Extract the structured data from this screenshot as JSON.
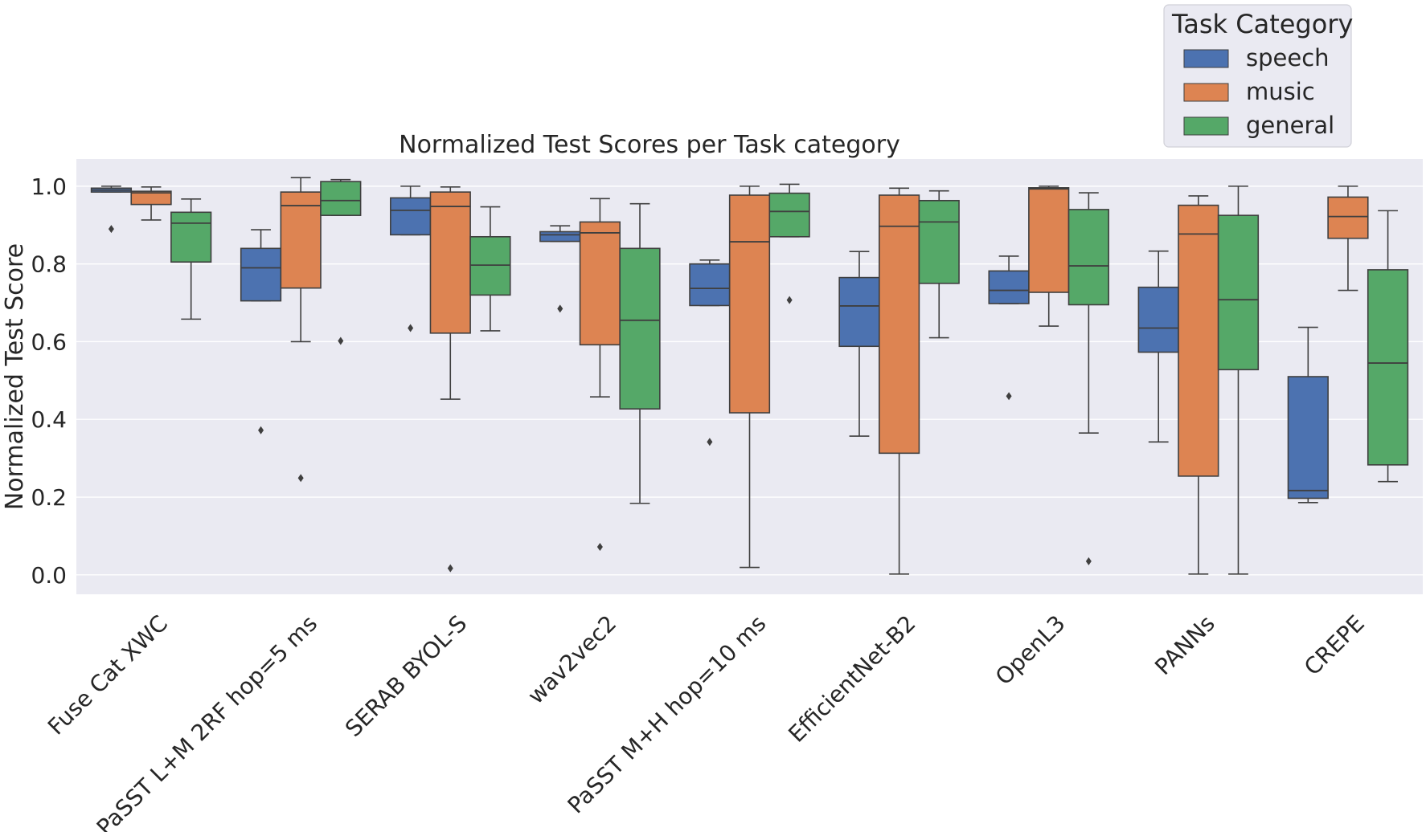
{
  "chart_data": {
    "type": "box",
    "title": "Normalized Test Scores per Task category",
    "xlabel": "",
    "ylabel": "Normalized Test Score",
    "ylim": [
      -0.05,
      1.07
    ],
    "yticks": [
      0.0,
      0.2,
      0.4,
      0.6,
      0.8,
      1.0
    ],
    "ytick_labels": [
      "0.0",
      "0.2",
      "0.4",
      "0.6",
      "0.8",
      "1.0"
    ],
    "grid": true,
    "legend": {
      "title": "Task Category",
      "placement": "top-right",
      "entries": [
        "speech",
        "music",
        "general"
      ]
    },
    "categories": [
      "Fuse Cat XWC",
      "PaSST L+M 2RF hop=5 ms",
      "SERAB BYOL-S",
      "wav2vec2",
      "PaSST M+H hop=10 ms",
      "EfficientNet-B2",
      "OpenL3",
      "PANNs",
      "CREPE"
    ],
    "series": [
      {
        "name": "speech",
        "color": "#4c72b0",
        "boxes": [
          {
            "whislo": 0.985,
            "q1": 0.985,
            "med": 0.99,
            "q3": 0.995,
            "whishi": 1.0,
            "fliers": [
              0.89
            ]
          },
          {
            "whislo": 0.705,
            "q1": 0.705,
            "med": 0.79,
            "q3": 0.84,
            "whishi": 0.888,
            "fliers": [
              0.372
            ]
          },
          {
            "whislo": 0.875,
            "q1": 0.875,
            "med": 0.938,
            "q3": 0.97,
            "whishi": 1.0,
            "fliers": [
              0.635
            ]
          },
          {
            "whislo": 0.858,
            "q1": 0.858,
            "med": 0.875,
            "q3": 0.883,
            "whishi": 0.898,
            "fliers": [
              0.685
            ]
          },
          {
            "whislo": 0.693,
            "q1": 0.693,
            "med": 0.737,
            "q3": 0.8,
            "whishi": 0.81,
            "fliers": [
              0.342
            ]
          },
          {
            "whislo": 0.357,
            "q1": 0.588,
            "med": 0.692,
            "q3": 0.765,
            "whishi": 0.832,
            "fliers": []
          },
          {
            "whislo": 0.698,
            "q1": 0.698,
            "med": 0.732,
            "q3": 0.782,
            "whishi": 0.82,
            "fliers": [
              0.46
            ]
          },
          {
            "whislo": 0.342,
            "q1": 0.573,
            "med": 0.635,
            "q3": 0.74,
            "whishi": 0.833,
            "fliers": []
          },
          {
            "whislo": 0.186,
            "q1": 0.197,
            "med": 0.217,
            "q3": 0.51,
            "whishi": 0.637,
            "fliers": []
          }
        ]
      },
      {
        "name": "music",
        "color": "#dd8452",
        "boxes": [
          {
            "whislo": 0.913,
            "q1": 0.953,
            "med": 0.983,
            "q3": 0.987,
            "whishi": 0.998,
            "fliers": []
          },
          {
            "whislo": 0.6,
            "q1": 0.738,
            "med": 0.95,
            "q3": 0.985,
            "whishi": 1.022,
            "fliers": [
              0.249
            ]
          },
          {
            "whislo": 0.452,
            "q1": 0.622,
            "med": 0.948,
            "q3": 0.985,
            "whishi": 0.998,
            "fliers": [
              0.017
            ]
          },
          {
            "whislo": 0.458,
            "q1": 0.592,
            "med": 0.88,
            "q3": 0.908,
            "whishi": 0.968,
            "fliers": [
              0.072
            ]
          },
          {
            "whislo": 0.019,
            "q1": 0.417,
            "med": 0.857,
            "q3": 0.977,
            "whishi": 1.0,
            "fliers": []
          },
          {
            "whislo": 0.002,
            "q1": 0.313,
            "med": 0.897,
            "q3": 0.977,
            "whishi": 0.995,
            "fliers": []
          },
          {
            "whislo": 0.64,
            "q1": 0.727,
            "med": 0.993,
            "q3": 0.996,
            "whishi": 1.0,
            "fliers": []
          },
          {
            "whislo": 0.002,
            "q1": 0.254,
            "med": 0.877,
            "q3": 0.951,
            "whishi": 0.975,
            "fliers": []
          },
          {
            "whislo": 0.732,
            "q1": 0.866,
            "med": 0.922,
            "q3": 0.972,
            "whishi": 1.0,
            "fliers": []
          }
        ]
      },
      {
        "name": "general",
        "color": "#55a868",
        "boxes": [
          {
            "whislo": 0.658,
            "q1": 0.805,
            "med": 0.905,
            "q3": 0.933,
            "whishi": 0.967,
            "fliers": []
          },
          {
            "whislo": 0.925,
            "q1": 0.925,
            "med": 0.963,
            "q3": 1.012,
            "whishi": 1.017,
            "fliers": [
              0.602
            ]
          },
          {
            "whislo": 0.628,
            "q1": 0.72,
            "med": 0.797,
            "q3": 0.87,
            "whishi": 0.947,
            "fliers": []
          },
          {
            "whislo": 0.184,
            "q1": 0.427,
            "med": 0.655,
            "q3": 0.84,
            "whishi": 0.955,
            "fliers": []
          },
          {
            "whislo": 0.87,
            "q1": 0.87,
            "med": 0.935,
            "q3": 0.982,
            "whishi": 1.005,
            "fliers": [
              0.707
            ]
          },
          {
            "whislo": 0.61,
            "q1": 0.75,
            "med": 0.908,
            "q3": 0.963,
            "whishi": 0.988,
            "fliers": []
          },
          {
            "whislo": 0.365,
            "q1": 0.695,
            "med": 0.795,
            "q3": 0.94,
            "whishi": 0.983,
            "fliers": [
              0.035
            ]
          },
          {
            "whislo": 0.002,
            "q1": 0.528,
            "med": 0.708,
            "q3": 0.925,
            "whishi": 1.0,
            "fliers": []
          },
          {
            "whislo": 0.24,
            "q1": 0.283,
            "med": 0.545,
            "q3": 0.785,
            "whishi": 0.937,
            "fliers": []
          }
        ]
      }
    ]
  }
}
